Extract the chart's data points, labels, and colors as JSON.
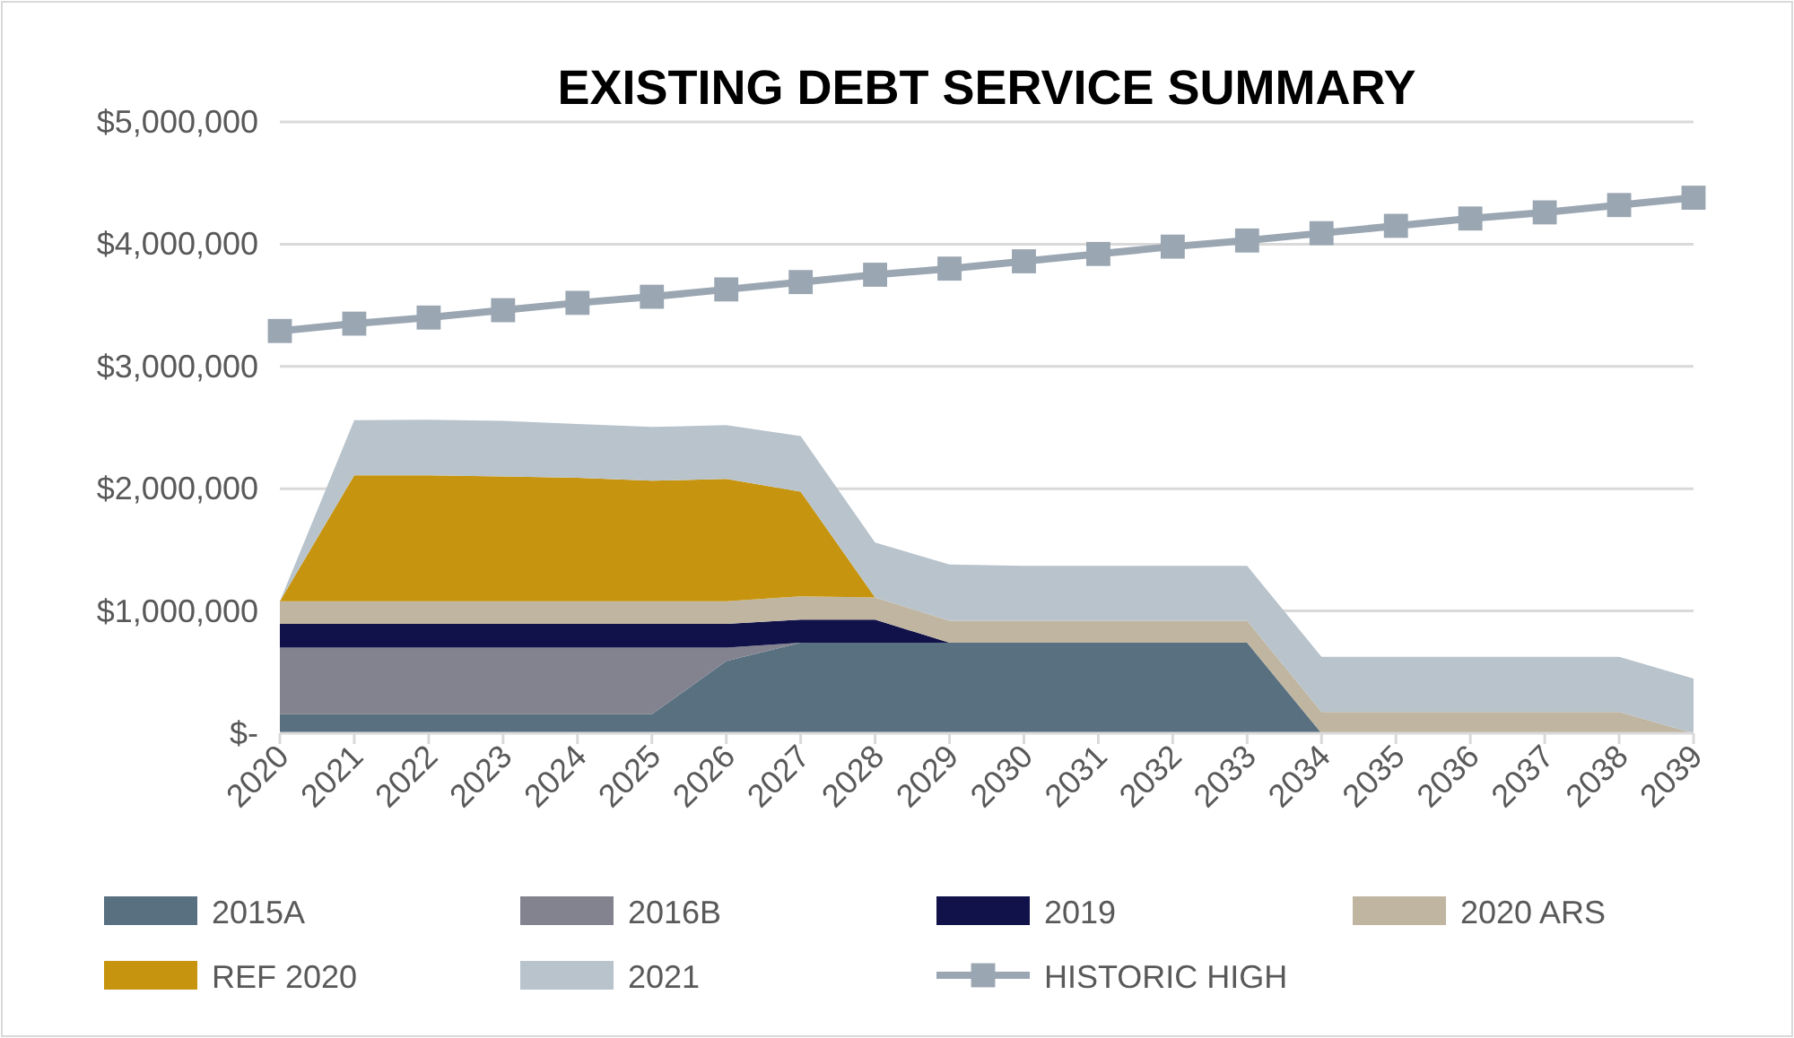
{
  "chart_data": {
    "type": "area",
    "title": "EXISTING DEBT SERVICE SUMMARY",
    "stacked": true,
    "categories": [
      "2020",
      "2021",
      "2022",
      "2023",
      "2024",
      "2025",
      "2026",
      "2027",
      "2028",
      "2029",
      "2030",
      "2031",
      "2032",
      "2033",
      "2034",
      "2035",
      "2036",
      "2037",
      "2038",
      "2039"
    ],
    "series": [
      {
        "name": "2015A",
        "color": "#587080",
        "values": [
          155000,
          155000,
          155000,
          155000,
          155000,
          155000,
          590000,
          740000,
          740000,
          740000,
          740000,
          740000,
          740000,
          740000,
          0,
          null,
          null,
          null,
          null,
          null
        ]
      },
      {
        "name": "2016B",
        "color": "#83838f",
        "values": [
          545000,
          545000,
          545000,
          545000,
          545000,
          545000,
          110000,
          0,
          null,
          null,
          null,
          null,
          null,
          null,
          null,
          null,
          null,
          null,
          null,
          null
        ]
      },
      {
        "name": "2019",
        "color": "#12124a",
        "values": [
          195000,
          195000,
          195000,
          195000,
          195000,
          195000,
          195000,
          190000,
          190000,
          0,
          null,
          null,
          null,
          null,
          null,
          null,
          null,
          null,
          null,
          null
        ]
      },
      {
        "name": "2020 ARS",
        "color": "#bfb5a0",
        "values": [
          185000,
          185000,
          185000,
          185000,
          185000,
          185000,
          185000,
          190000,
          180000,
          180000,
          180000,
          180000,
          180000,
          180000,
          175000,
          175000,
          175000,
          175000,
          175000,
          0
        ]
      },
      {
        "name": "REF 2020",
        "color": "#c6940e",
        "values": [
          0,
          1030000,
          1030000,
          1020000,
          1010000,
          985000,
          1000000,
          855000,
          0,
          null,
          null,
          null,
          null,
          null,
          null,
          null,
          null,
          null,
          null,
          null
        ]
      },
      {
        "name": "2021",
        "color": "#b8c3cc",
        "values": [
          0,
          450000,
          455000,
          455000,
          440000,
          440000,
          440000,
          455000,
          450000,
          460000,
          450000,
          450000,
          450000,
          450000,
          450000,
          450000,
          450000,
          450000,
          450000,
          447000
        ]
      },
      {
        "name": "HISTORIC HIGH",
        "type": "line",
        "color": "#9aa6b2",
        "marker": "square",
        "values": [
          3290000,
          3350000,
          3400000,
          3460000,
          3520000,
          3570000,
          3630000,
          3690000,
          3750000,
          3800000,
          3860000,
          3920000,
          3980000,
          4030000,
          4090000,
          4150000,
          4210000,
          4260000,
          4320000,
          4380000
        ]
      }
    ],
    "ylim": [
      0,
      5000000
    ],
    "yticks": [
      {
        "value": 0,
        "label": "$-"
      },
      {
        "value": 1000000,
        "label": "$1,000,000"
      },
      {
        "value": 2000000,
        "label": "$2,000,000"
      },
      {
        "value": 3000000,
        "label": "$3,000,000"
      },
      {
        "value": 4000000,
        "label": "$4,000,000"
      },
      {
        "value": 5000000,
        "label": "$5,000,000"
      }
    ],
    "grid": "y",
    "legend": "bottom"
  }
}
